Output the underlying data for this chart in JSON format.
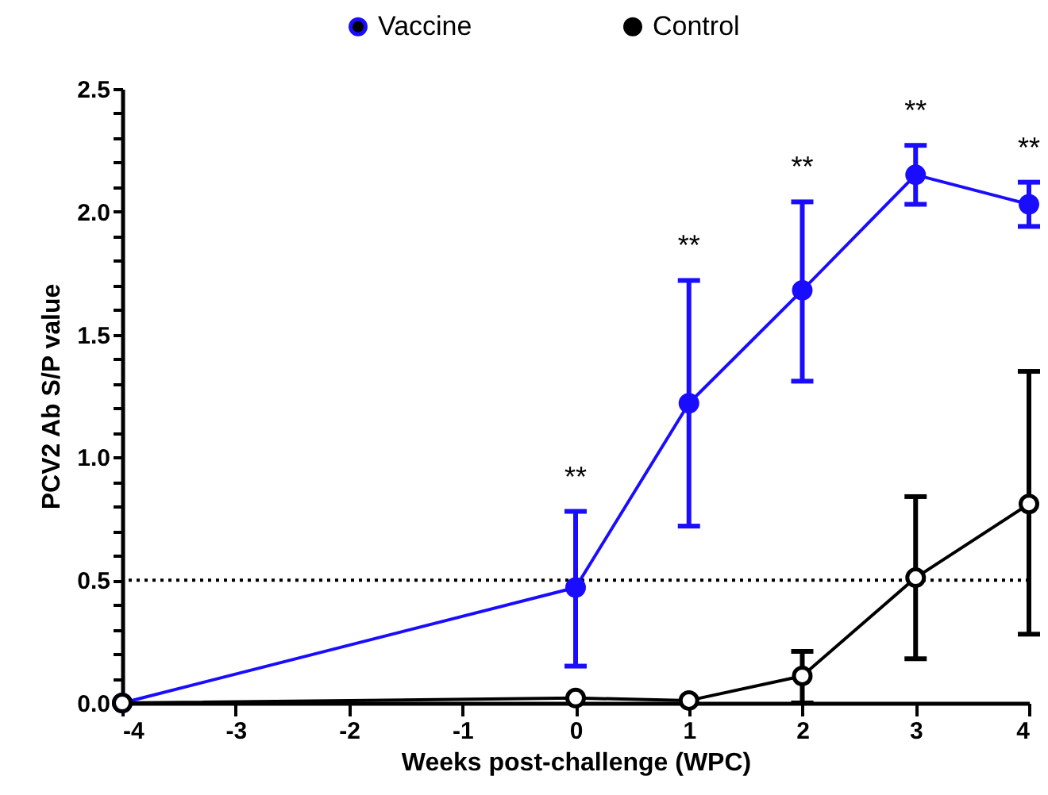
{
  "chart_data": {
    "type": "line",
    "xlabel": "Weeks post-challenge (WPC)",
    "ylabel": "PCV2 Ab S/P value",
    "x": [
      -4,
      0,
      1,
      2,
      3,
      4
    ],
    "series": [
      {
        "name": "Vaccine",
        "color": "#1a0dff",
        "values": [
          0,
          0.47,
          1.22,
          1.68,
          2.15,
          2.03
        ],
        "errors": [
          null,
          [
            0.15,
            0.78
          ],
          [
            0.72,
            1.72
          ],
          [
            1.31,
            2.04
          ],
          [
            2.03,
            2.27
          ],
          [
            1.94,
            2.12
          ]
        ]
      },
      {
        "name": "Control",
        "color": "#000000",
        "values": [
          0,
          0.02,
          0.01,
          0.11,
          0.51,
          0.81
        ],
        "errors": [
          null,
          null,
          null,
          [
            0.0,
            0.21
          ],
          [
            0.18,
            0.84
          ],
          [
            0.28,
            1.35
          ]
        ]
      }
    ],
    "xlim": [
      -4,
      4
    ],
    "xticks": [
      -4,
      -3,
      -2,
      -1,
      0,
      1,
      2,
      3,
      4
    ],
    "ylim": [
      0,
      2.5
    ],
    "yticks": [
      {
        "value": 0,
        "label": "0.0"
      },
      {
        "value": 0.1,
        "label": null
      },
      {
        "value": 0.2,
        "label": null
      },
      {
        "value": 0.3,
        "label": null
      },
      {
        "value": 0.4,
        "label": null
      },
      {
        "value": 0.5,
        "label": "0.5"
      },
      {
        "value": 0.6,
        "label": null
      },
      {
        "value": 0.7,
        "label": null
      },
      {
        "value": 0.8,
        "label": null
      },
      {
        "value": 0.9,
        "label": null
      },
      {
        "value": 1.0,
        "label": "1.0"
      },
      {
        "value": 1.1,
        "label": null
      },
      {
        "value": 1.2,
        "label": null
      },
      {
        "value": 1.3,
        "label": null
      },
      {
        "value": 1.4,
        "label": null
      },
      {
        "value": 1.5,
        "label": "1.5"
      },
      {
        "value": 1.6,
        "label": null
      },
      {
        "value": 1.7,
        "label": null
      },
      {
        "value": 1.8,
        "label": null
      },
      {
        "value": 1.9,
        "label": null
      },
      {
        "value": 2.0,
        "label": "2.0"
      },
      {
        "value": 2.1,
        "label": null
      },
      {
        "value": 2.2,
        "label": null
      },
      {
        "value": 2.3,
        "label": null
      },
      {
        "value": 2.4,
        "label": null
      },
      {
        "value": 2.5,
        "label": "2.5"
      }
    ],
    "ref_lines": [
      {
        "axis": "y",
        "value": 0.5,
        "color": "#000000",
        "line_style": "dotted"
      }
    ],
    "annotations": [
      "**",
      "**",
      "**",
      "**",
      "**"
    ],
    "legend": "top",
    "marker": "circle",
    "line_style": "solid",
    "grid": false
  }
}
